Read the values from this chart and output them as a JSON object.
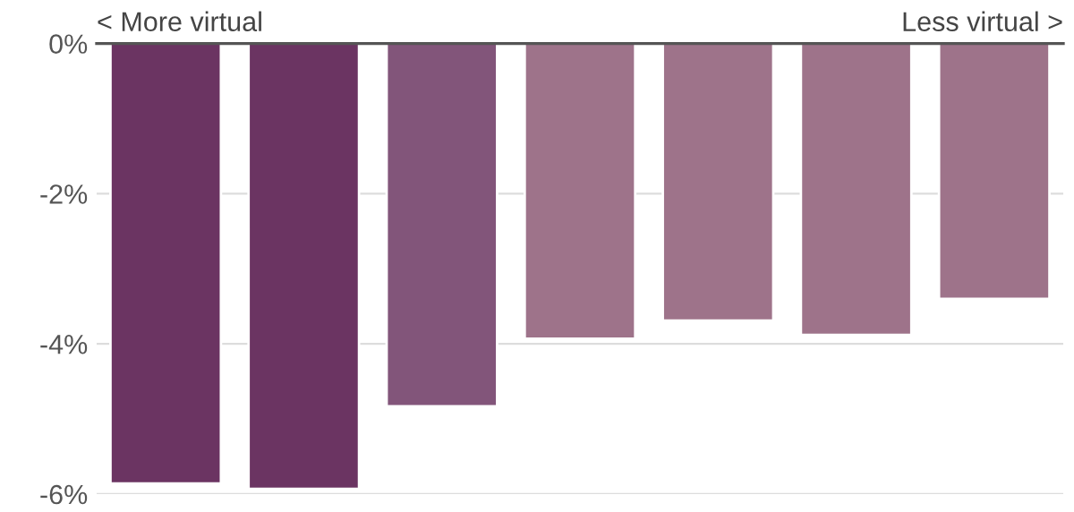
{
  "chart_data": {
    "type": "bar",
    "categories": [
      null,
      null,
      null,
      null,
      null,
      null,
      null
    ],
    "values": [
      -5.86,
      -5.93,
      -4.83,
      -3.93,
      -3.69,
      -3.88,
      -3.4
    ],
    "colors": [
      "#6b3462",
      "#6b3462",
      "#82557a",
      "#9e738a",
      "#9e738a",
      "#9e738a",
      "#9e738a"
    ],
    "ylim": [
      -6,
      0
    ],
    "yticks": [
      {
        "value": 0,
        "label": "0%"
      },
      {
        "value": -2,
        "label": "-2%"
      },
      {
        "value": -4,
        "label": "-4%"
      },
      {
        "value": -6,
        "label": "-6%"
      }
    ],
    "grid": "y",
    "annotations": [
      "< More virtual",
      "Less virtual >"
    ]
  }
}
